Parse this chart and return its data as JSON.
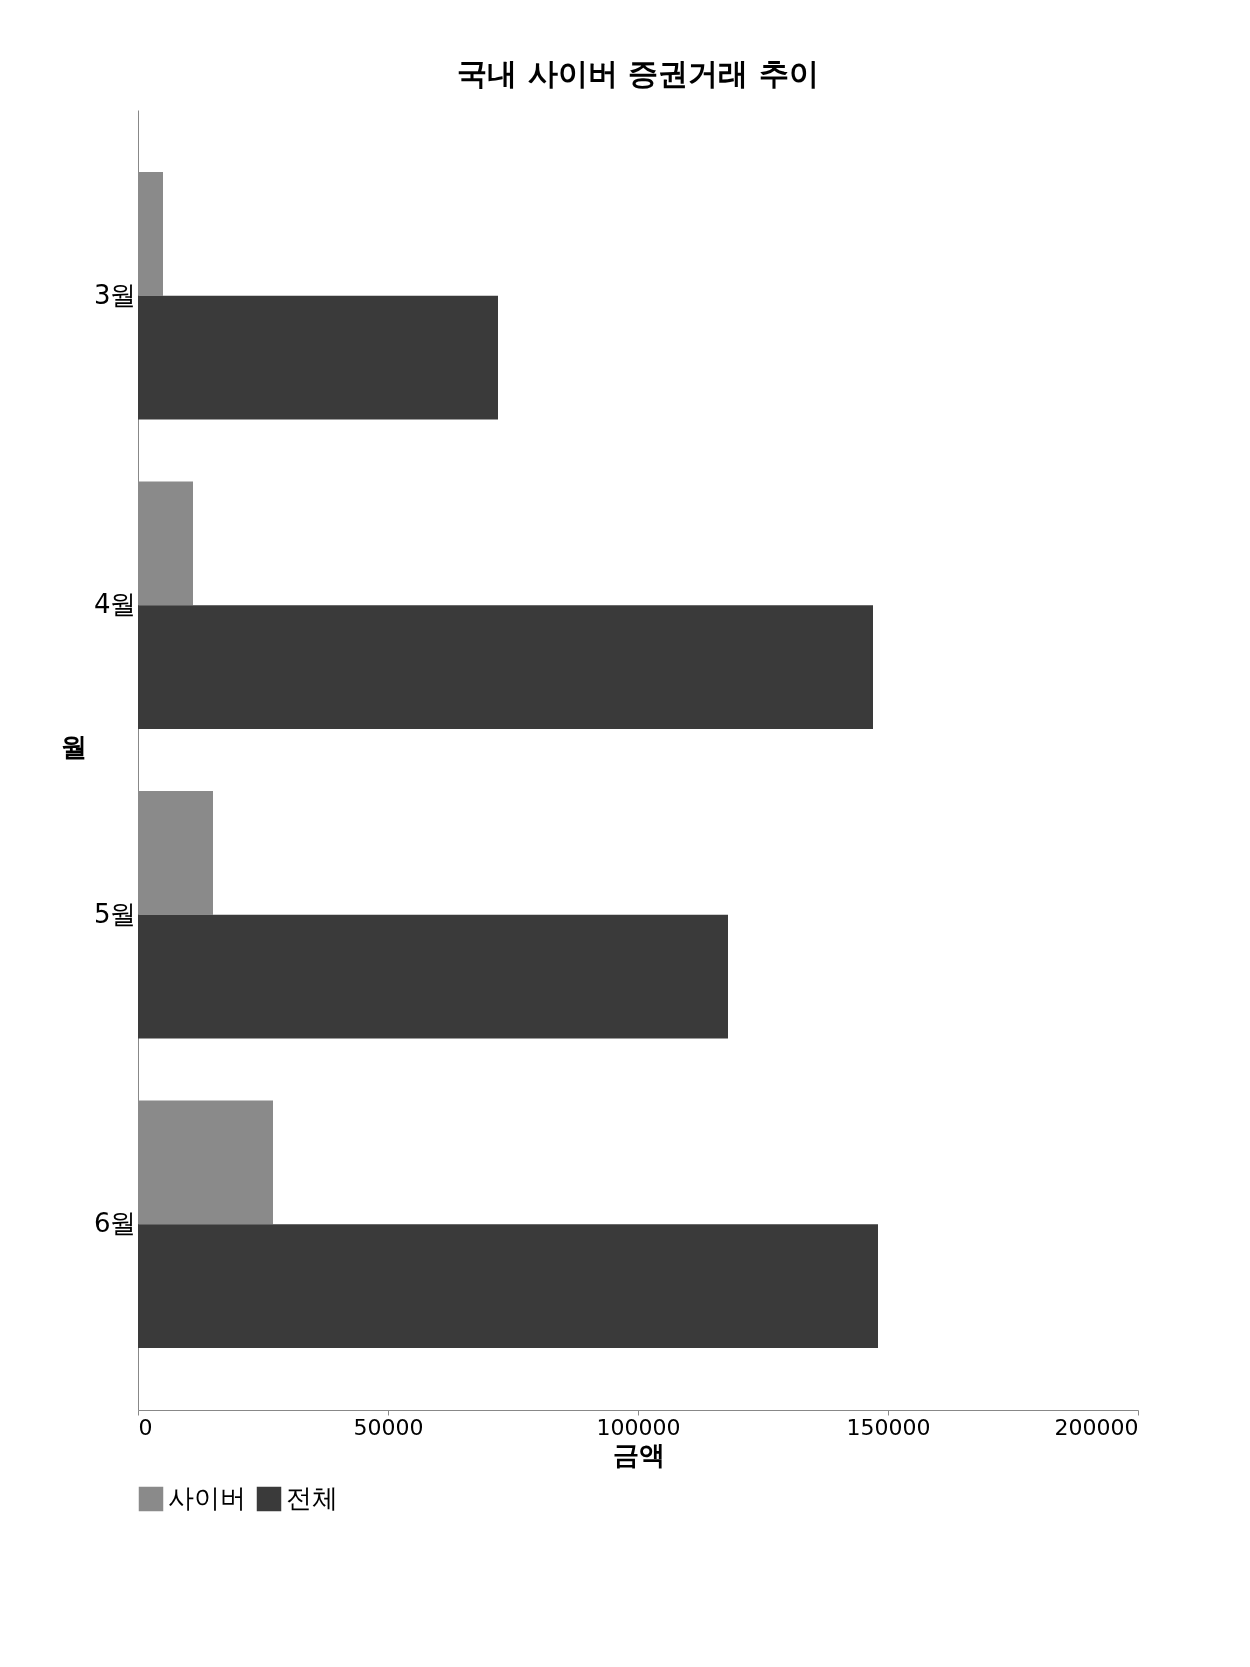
{
  "chart_data": {
    "type": "bar",
    "orientation": "horizontal",
    "title": "국내 사이버 증권거래 추이",
    "xlabel": "금액",
    "ylabel": "월",
    "categories": [
      "3월",
      "4월",
      "5월",
      "6월"
    ],
    "series": [
      {
        "name": "사이버",
        "color": "#8a8a8a",
        "values": [
          5000,
          11000,
          15000,
          27000
        ]
      },
      {
        "name": "전체",
        "color": "#3a3a3a",
        "values": [
          72000,
          147000,
          118000,
          148000
        ]
      }
    ],
    "xlim": [
      0,
      200000
    ],
    "xticks": [
      0,
      50000,
      100000,
      150000,
      200000
    ],
    "grid": false,
    "legend": "bottom"
  }
}
